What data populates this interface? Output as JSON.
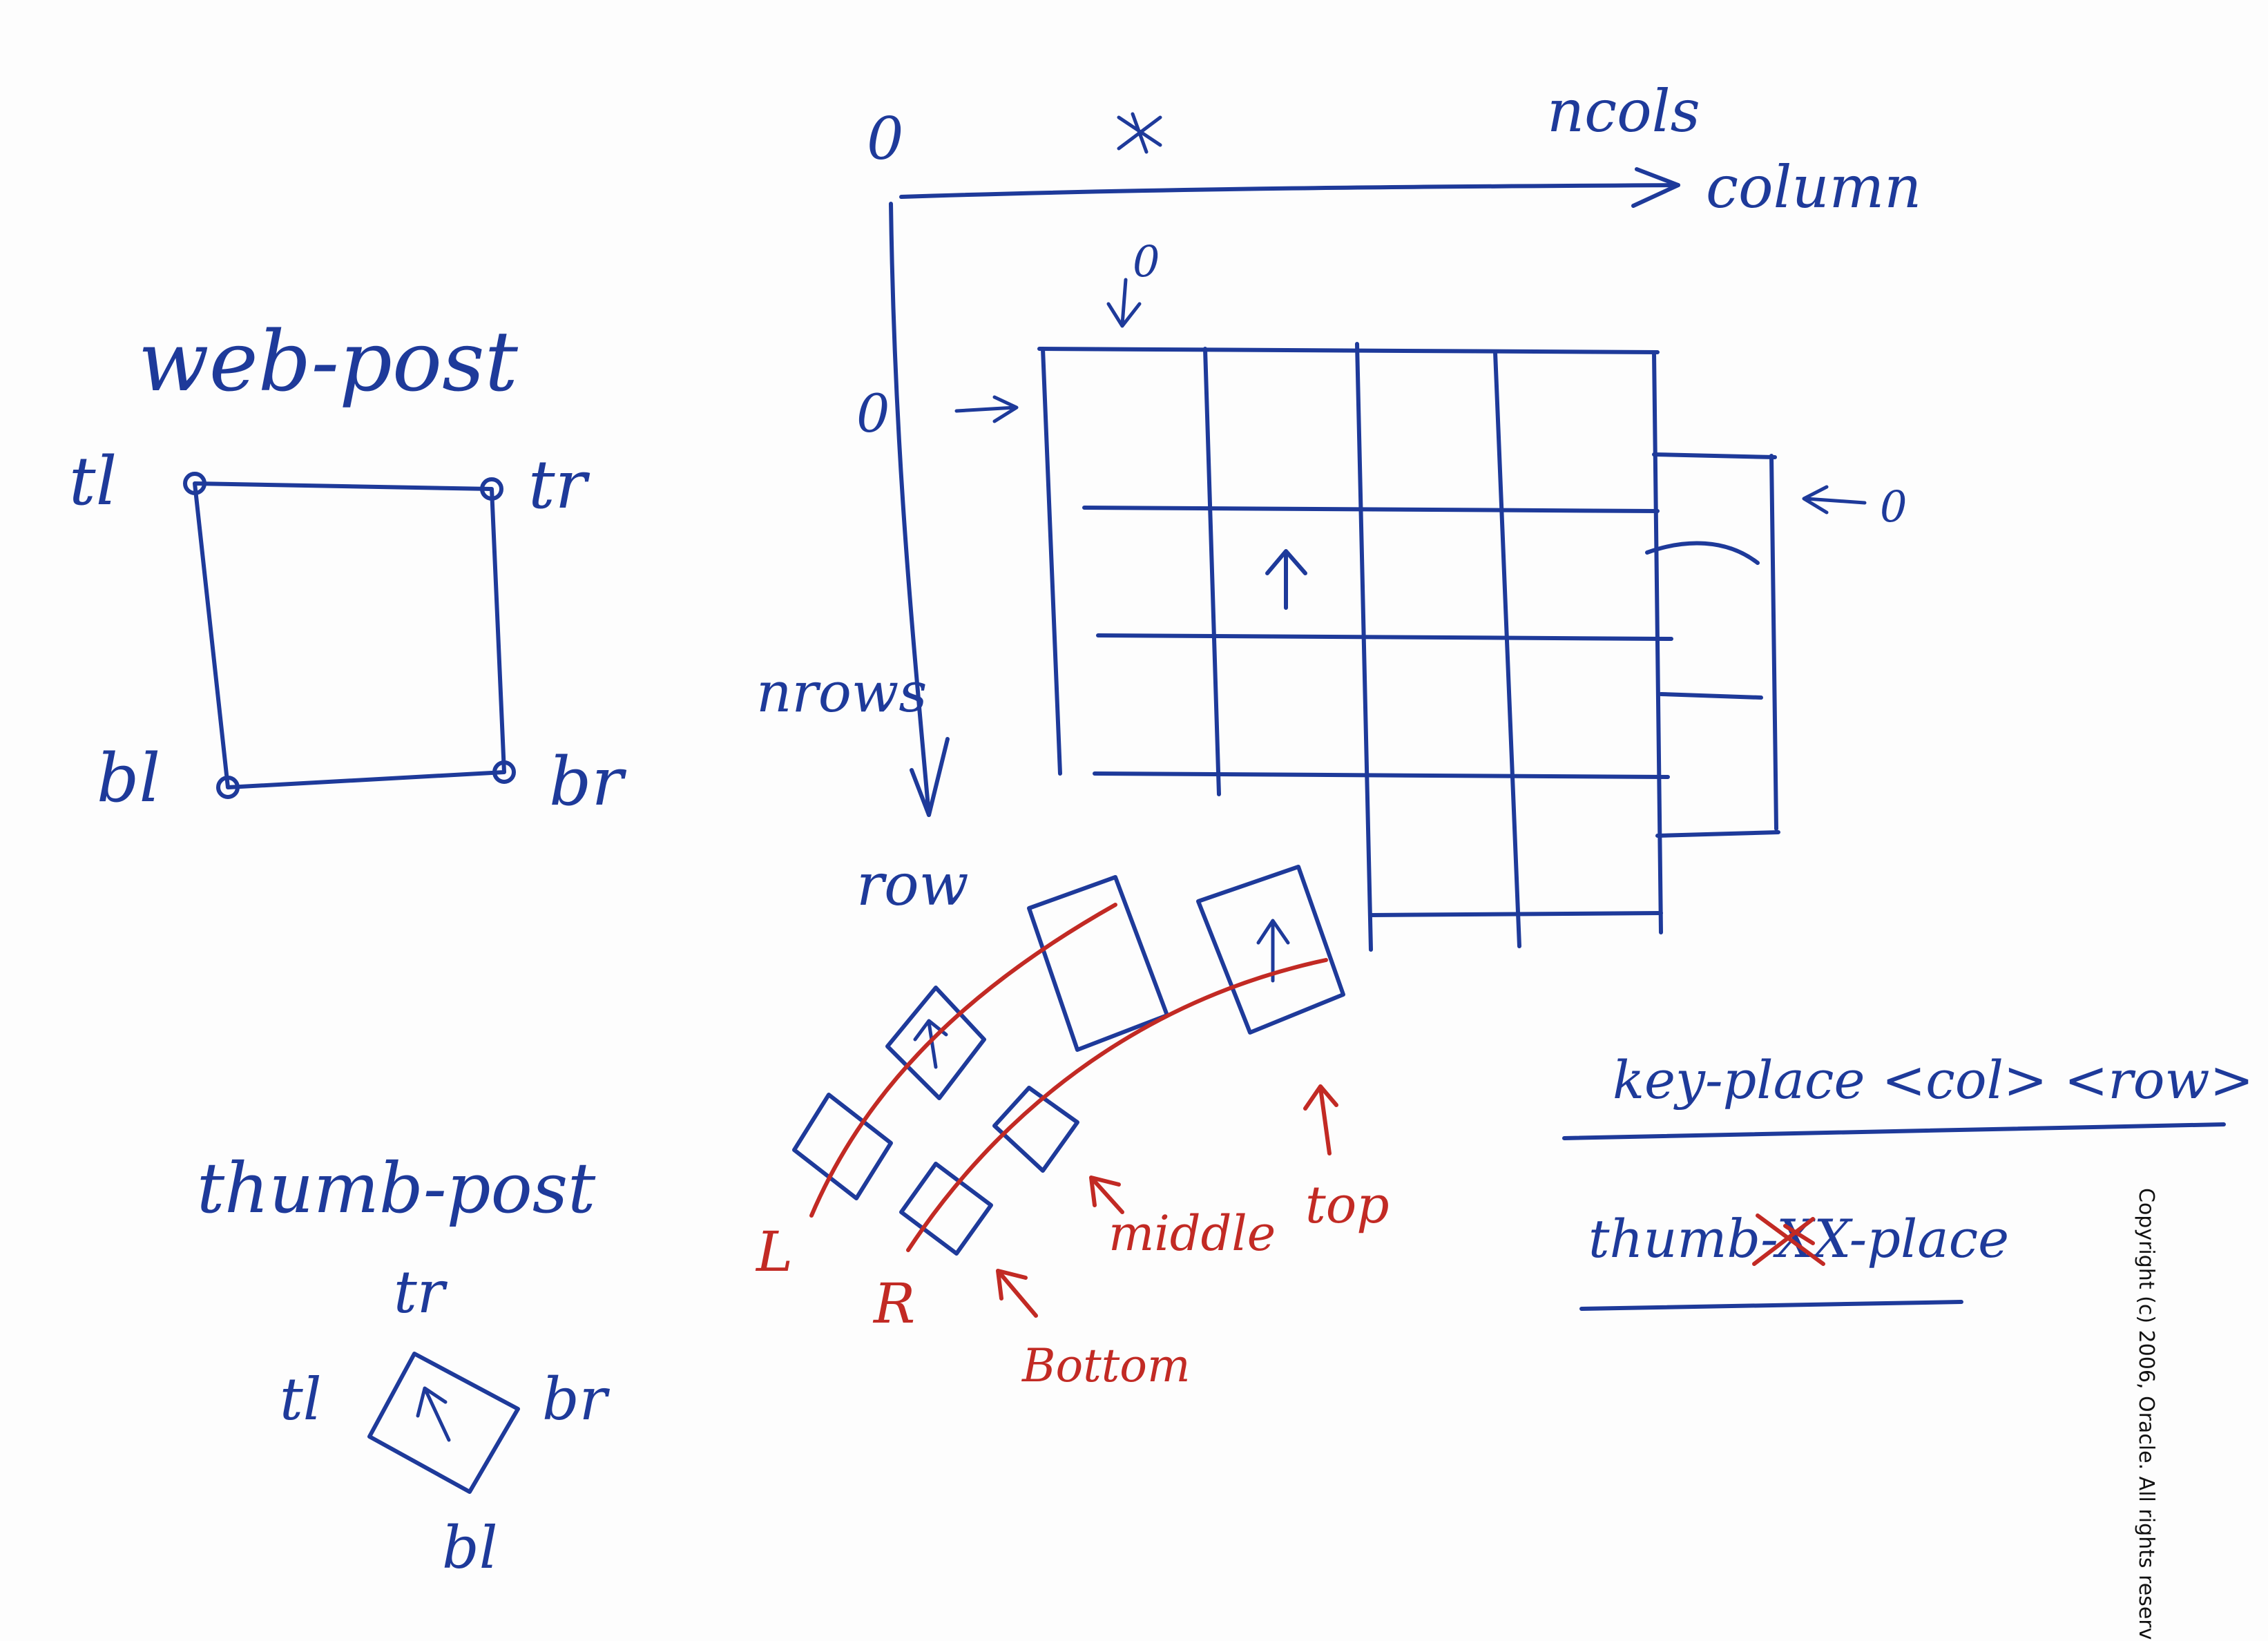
{
  "colors": {
    "blue_ink": "#1e3a9a",
    "red_ink": "#c22a24",
    "paper": "#fdfdfd"
  },
  "web_post": {
    "title": "web-post",
    "tl": "tl",
    "tr": "tr",
    "bl": "bl",
    "br": "br"
  },
  "thumb_post": {
    "title": "thumb-post",
    "tl": "tl",
    "tr": "tr",
    "bl": "bl",
    "br": "br"
  },
  "axes": {
    "origin_col": "0",
    "origin_row": "0",
    "ncols": "ncols",
    "column": "column",
    "nrows": "nrows",
    "row": "row"
  },
  "grid": {
    "col_zero_marker": "0",
    "right_zero_marker": "0"
  },
  "thumb_cluster": {
    "left": "L",
    "right": "R",
    "bottom": "Bottom",
    "middle": "middle",
    "top": "top"
  },
  "functions": {
    "key_place": "key-place <col> <row>",
    "thumb_place_prefix": "thumb-",
    "thumb_place_struck": "XX",
    "thumb_place_suffix": "-place"
  },
  "copyright": "Copyright (c) 2006, Oracle. All rights reserv"
}
